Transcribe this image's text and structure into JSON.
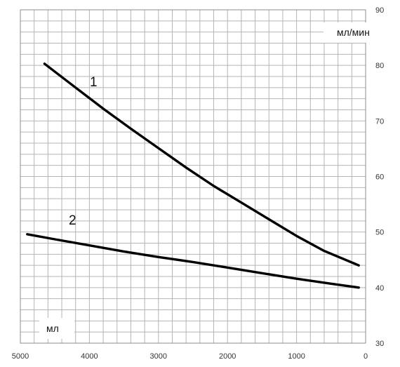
{
  "chart_data": {
    "type": "line",
    "y_unit_label": "мл/мин",
    "x_unit_label": "мл",
    "xlim": [
      5000,
      0
    ],
    "ylim": [
      30,
      90
    ],
    "x_reversed": true,
    "y_axis_side": "right",
    "x_ticks": [
      5000,
      4000,
      3000,
      2000,
      1000,
      0
    ],
    "x_tick_labels": [
      "5000",
      "4000",
      "3000",
      "2000",
      "1000",
      "0"
    ],
    "y_ticks": [
      30,
      40,
      50,
      60,
      70,
      80,
      90
    ],
    "y_tick_labels": [
      "30",
      "40",
      "50",
      "60",
      "70",
      "80",
      "90"
    ],
    "grid": true,
    "colors": {
      "line": "#000000",
      "grid": "#b4b4b4",
      "background": "#ffffff"
    },
    "series": [
      {
        "label": "1",
        "x": [
          4650,
          4200,
          3800,
          3400,
          3000,
          2600,
          2200,
          1800,
          1400,
          1000,
          600,
          100
        ],
        "y": [
          80.3,
          76.0,
          72.2,
          68.6,
          65.1,
          61.6,
          58.3,
          55.3,
          52.3,
          49.3,
          46.6,
          44.0
        ]
      },
      {
        "label": "2",
        "x": [
          4900,
          4500,
          4000,
          3500,
          3000,
          2500,
          2000,
          1500,
          1000,
          500,
          100
        ],
        "y": [
          49.6,
          48.7,
          47.6,
          46.5,
          45.5,
          44.6,
          43.6,
          42.6,
          41.6,
          40.7,
          40.0
        ]
      }
    ]
  }
}
